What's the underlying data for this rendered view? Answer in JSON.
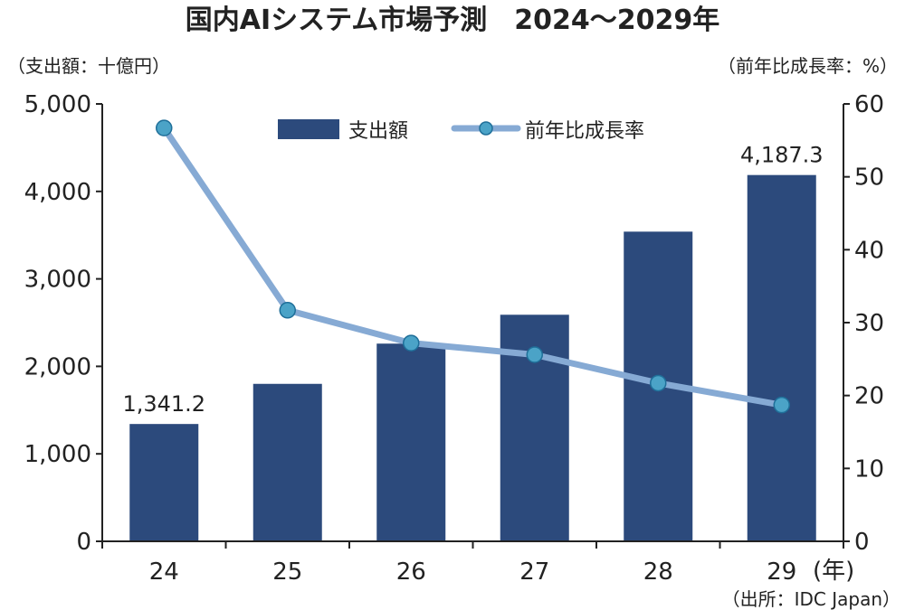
{
  "chart_data": {
    "type": "bar",
    "title": "国内AIシステム市場予測　2024〜2029年",
    "ylabel_left": "（支出額：十億円）",
    "ylabel_right": "（前年比成長率：%）",
    "xunit": "(年)",
    "source": "（出所：IDC Japan）",
    "categories": [
      "24",
      "25",
      "26",
      "27",
      "28",
      "29"
    ],
    "series": [
      {
        "name": "支出額",
        "type": "bar",
        "axis": "left",
        "color": "#2c4a7c",
        "values": [
          1341.2,
          1800,
          2260,
          2590,
          3540,
          4187.3
        ]
      },
      {
        "name": "前年比成長率",
        "type": "line",
        "axis": "right",
        "color": "#86aad4",
        "marker_color": "#4ba3c7",
        "values": [
          56.7,
          31.7,
          27.2,
          25.6,
          21.7,
          18.7
        ]
      }
    ],
    "data_labels": [
      {
        "series": 0,
        "index": 0,
        "text": "1,341.2"
      },
      {
        "series": 0,
        "index": 5,
        "text": "4,187.3"
      }
    ],
    "ylim_left": [
      0,
      5000
    ],
    "yticks_left": [
      0,
      1000,
      2000,
      3000,
      4000,
      5000
    ],
    "ytick_labels_left": [
      "0",
      "1,000",
      "2,000",
      "3,000",
      "4,000",
      "5,000"
    ],
    "ylim_right": [
      0,
      60
    ],
    "yticks_right": [
      0,
      10,
      20,
      30,
      40,
      50,
      60
    ],
    "ytick_labels_right": [
      "0",
      "10",
      "20",
      "30",
      "40",
      "50",
      "60"
    ],
    "grid": false,
    "legend_position": "top-center"
  }
}
